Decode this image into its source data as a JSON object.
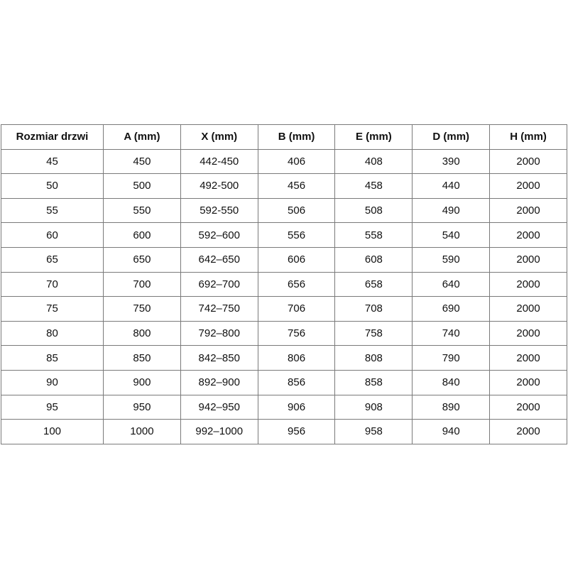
{
  "table": {
    "header": [
      "Rozmiar drzwi",
      "A (mm)",
      "X (mm)",
      "B (mm)",
      "E (mm)",
      "D (mm)",
      "H (mm)"
    ],
    "rows": [
      [
        45,
        450,
        "442-450",
        406,
        408,
        390,
        2000
      ],
      [
        50,
        500,
        "492-500",
        456,
        458,
        440,
        2000
      ],
      [
        55,
        550,
        "592-550",
        506,
        508,
        490,
        2000
      ],
      [
        60,
        600,
        "592–600",
        556,
        558,
        540,
        2000
      ],
      [
        65,
        650,
        "642–650",
        606,
        608,
        590,
        2000
      ],
      [
        70,
        700,
        "692–700",
        656,
        658,
        640,
        2000
      ],
      [
        75,
        750,
        "742–750",
        706,
        708,
        690,
        2000
      ],
      [
        80,
        800,
        "792–800",
        756,
        758,
        740,
        2000
      ],
      [
        85,
        850,
        "842–850",
        806,
        808,
        790,
        2000
      ],
      [
        90,
        900,
        "892–900",
        856,
        858,
        840,
        2000
      ],
      [
        95,
        950,
        "942–950",
        906,
        908,
        890,
        2000
      ],
      [
        100,
        1000,
        "992–1000",
        956,
        958,
        940,
        2000
      ]
    ]
  }
}
